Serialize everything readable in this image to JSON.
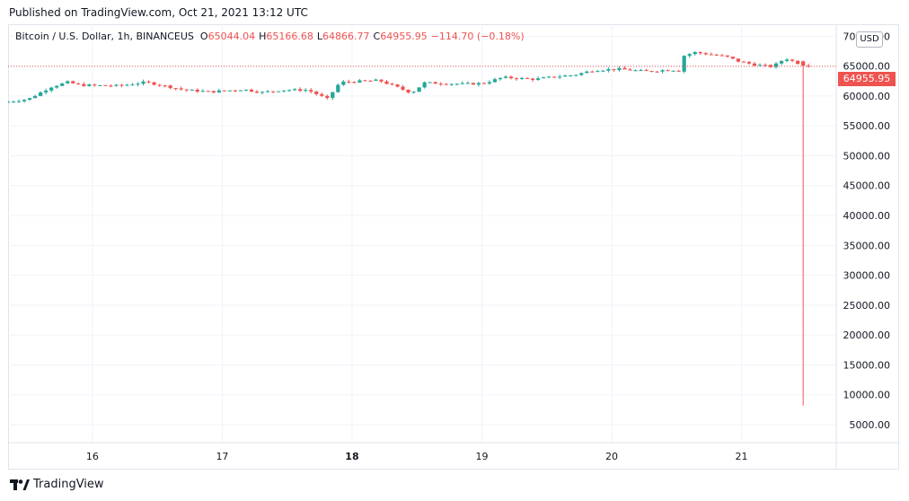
{
  "header": {
    "published": "Published on TradingView.com, Oct 21, 2021 13:12 UTC"
  },
  "legend": {
    "symbol": "Bitcoin / U.S. Dollar, 1h, BINANCEUS",
    "open_label": "O",
    "open": "65044.04",
    "high_label": "H",
    "high": "65166.68",
    "low_label": "L",
    "low": "64866.77",
    "close_label": "C",
    "close": "64955.95",
    "change": "−114.70 (−0.18%)"
  },
  "currency_button": "USD",
  "last_price_tag": "64955.95",
  "footer": {
    "brand": "TradingView",
    "logo_icon": "tradingview-logo-icon"
  },
  "colors": {
    "up": "#26a69a",
    "down": "#ef5350",
    "grid": "#f0f3fa",
    "text": "#131722",
    "last_price_line": "#ef5350"
  },
  "chart_data": {
    "type": "candlestick",
    "title": "Bitcoin / U.S. Dollar, 1h, BINANCEUS",
    "x_tick_labels": [
      "16",
      "17",
      "18",
      "19",
      "20",
      "21"
    ],
    "x_tick_bold": "18",
    "y_tick_labels": [
      "70000.00",
      "65000.00",
      "60000.00",
      "55000.00",
      "50000.00",
      "45000.00",
      "40000.00",
      "35000.00",
      "30000.00",
      "25000.00",
      "20000.00",
      "15000.00",
      "10000.00",
      "5000.00"
    ],
    "y_ticks": [
      70000,
      65000,
      60000,
      55000,
      50000,
      45000,
      40000,
      35000,
      30000,
      25000,
      20000,
      15000,
      10000,
      5000
    ],
    "ylim": [
      2000,
      72000
    ],
    "last_price": 64955.95,
    "x_range_days": [
      15.35,
      21.73
    ],
    "anomaly_wick": {
      "x_day": 21.48,
      "low": 8200,
      "open": 65800
    },
    "anchors": [
      [
        15.35,
        58900
      ],
      [
        15.55,
        59500
      ],
      [
        15.72,
        61500
      ],
      [
        15.85,
        62300
      ],
      [
        15.95,
        61800
      ],
      [
        16.25,
        61700
      ],
      [
        16.45,
        62300
      ],
      [
        16.55,
        61900
      ],
      [
        16.75,
        61000
      ],
      [
        16.95,
        60700
      ],
      [
        17.2,
        61100
      ],
      [
        17.35,
        60600
      ],
      [
        17.5,
        61000
      ],
      [
        17.7,
        61000
      ],
      [
        17.85,
        59500
      ],
      [
        17.95,
        62300
      ],
      [
        18.25,
        62600
      ],
      [
        18.42,
        61200
      ],
      [
        18.5,
        60500
      ],
      [
        18.6,
        62200
      ],
      [
        18.9,
        62000
      ],
      [
        19.05,
        62100
      ],
      [
        19.2,
        63100
      ],
      [
        19.45,
        62800
      ],
      [
        19.6,
        63200
      ],
      [
        19.75,
        63500
      ],
      [
        19.9,
        64300
      ],
      [
        20.1,
        64500
      ],
      [
        20.3,
        64100
      ],
      [
        20.5,
        64400
      ],
      [
        20.56,
        64200
      ],
      [
        20.58,
        66600
      ],
      [
        20.68,
        67300
      ],
      [
        20.82,
        66900
      ],
      [
        20.92,
        66600
      ],
      [
        21.02,
        65800
      ],
      [
        21.15,
        65200
      ],
      [
        21.28,
        64900
      ],
      [
        21.38,
        66300
      ],
      [
        21.45,
        65700
      ],
      [
        21.55,
        64956
      ]
    ]
  }
}
